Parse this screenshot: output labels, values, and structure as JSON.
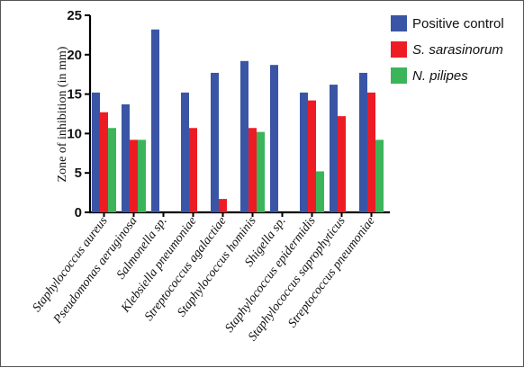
{
  "chart_data": {
    "type": "bar",
    "ylabel": "Zone of inhibition (in mm)",
    "ylim": [
      0,
      25
    ],
    "yticks": [
      0,
      5,
      10,
      15,
      20,
      25
    ],
    "categories": [
      "Staphylococcus aureus",
      "Pseudomonas aeruginosa",
      "Salmonella sp.",
      "Klebsiella pneumoniae",
      "Streptococcus agalactiae",
      "Staphylococcus hominis",
      "Shigella  sp.",
      "Staphylococcus epidermidis",
      "Staphylococcus saprophyticus",
      "Streptococcus pneumoniae"
    ],
    "series": [
      {
        "name": "Positive control",
        "color": "#3a55a5",
        "italic": false,
        "values": [
          15.2,
          13.7,
          23.2,
          15.2,
          17.7,
          19.2,
          18.7,
          15.2,
          16.2,
          17.7
        ]
      },
      {
        "name": "S. sarasinorum",
        "color": "#ed1c24",
        "italic": true,
        "values": [
          12.7,
          9.2,
          0,
          10.7,
          1.7,
          10.7,
          0,
          14.2,
          12.2,
          15.2
        ]
      },
      {
        "name": "N. pilipes",
        "color": "#3cb55a",
        "italic": true,
        "values": [
          10.7,
          9.2,
          0,
          0,
          0,
          10.2,
          0,
          5.2,
          0,
          9.2
        ]
      }
    ],
    "legend_position": "top-right",
    "grid": false
  }
}
